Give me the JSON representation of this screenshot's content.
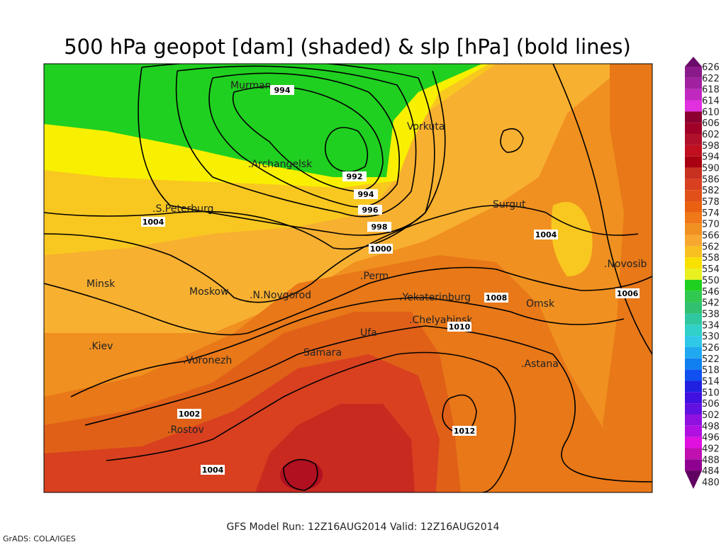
{
  "title": "500 hPa geopot [dam] (shaded) & slp [hPa] (bold lines)",
  "cities": [
    "Murman",
    "Vorkuta",
    ".Archangelsk",
    ".S.Peterburg",
    "Surgut",
    ".Novosib",
    "Minsk",
    "Moskow",
    ".N.Novgorod",
    ".Perm",
    ".Yekaterinburg",
    "Omsk",
    ".Chelyabinsk",
    "Ufa",
    ".Kiev",
    ".Voronezh",
    "Samara",
    ".Astana",
    ".Rostov"
  ],
  "contour_labels": [
    "994",
    "992",
    "994",
    "996",
    "998",
    "1000",
    "1004",
    "1004",
    "1008",
    "1010",
    "1006",
    "1002",
    "1004",
    "1012"
  ],
  "colorbar": {
    "levels": [
      626,
      622,
      618,
      614,
      610,
      606,
      602,
      598,
      594,
      590,
      586,
      582,
      578,
      574,
      570,
      566,
      562,
      558,
      554,
      550,
      546,
      542,
      538,
      534,
      530,
      526,
      522,
      518,
      514,
      510,
      506,
      502,
      498,
      496,
      492,
      488,
      484,
      480
    ]
  },
  "footer": "GFS Model Run: 12Z16AUG2014 Valid: 12Z16AUG2014",
  "credit": "GrADS: COLA/IGES"
}
